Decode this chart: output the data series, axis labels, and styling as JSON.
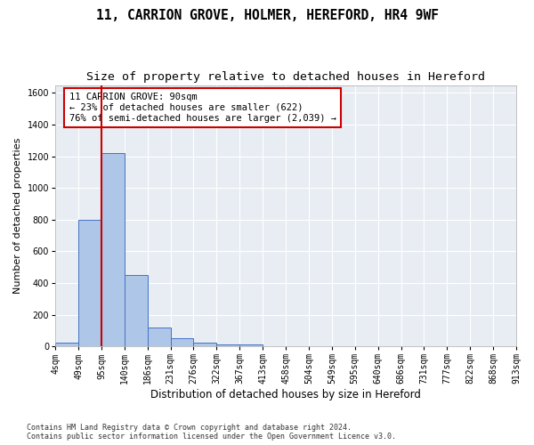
{
  "title1": "11, CARRION GROVE, HOLMER, HEREFORD, HR4 9WF",
  "title2": "Size of property relative to detached houses in Hereford",
  "xlabel": "Distribution of detached houses by size in Hereford",
  "ylabel": "Number of detached properties",
  "bar_values": [
    25,
    800,
    1220,
    450,
    120,
    50,
    25,
    15,
    10,
    0,
    0,
    0,
    0,
    0,
    0,
    0,
    0,
    0,
    0,
    0
  ],
  "bin_labels": [
    "4sqm",
    "49sqm",
    "95sqm",
    "140sqm",
    "186sqm",
    "231sqm",
    "276sqm",
    "322sqm",
    "367sqm",
    "413sqm",
    "458sqm",
    "504sqm",
    "549sqm",
    "595sqm",
    "640sqm",
    "686sqm",
    "731sqm",
    "777sqm",
    "822sqm",
    "868sqm",
    "913sqm"
  ],
  "bar_color": "#aec6e8",
  "bar_edge_color": "#4472c4",
  "vline_color": "#cc0000",
  "annotation_text": "11 CARRION GROVE: 90sqm\n← 23% of detached houses are smaller (622)\n76% of semi-detached houses are larger (2,039) →",
  "annotation_box_color": "#cc0000",
  "ylim": [
    0,
    1650
  ],
  "yticks": [
    0,
    200,
    400,
    600,
    800,
    1000,
    1200,
    1400,
    1600
  ],
  "background_color": "#e8edf4",
  "footer": "Contains HM Land Registry data © Crown copyright and database right 2024.\nContains public sector information licensed under the Open Government Licence v3.0.",
  "title1_fontsize": 10.5,
  "title2_fontsize": 9.5,
  "xlabel_fontsize": 8.5,
  "ylabel_fontsize": 8.0,
  "annotation_fontsize": 7.5,
  "tick_fontsize": 7.0,
  "footer_fontsize": 6.0
}
